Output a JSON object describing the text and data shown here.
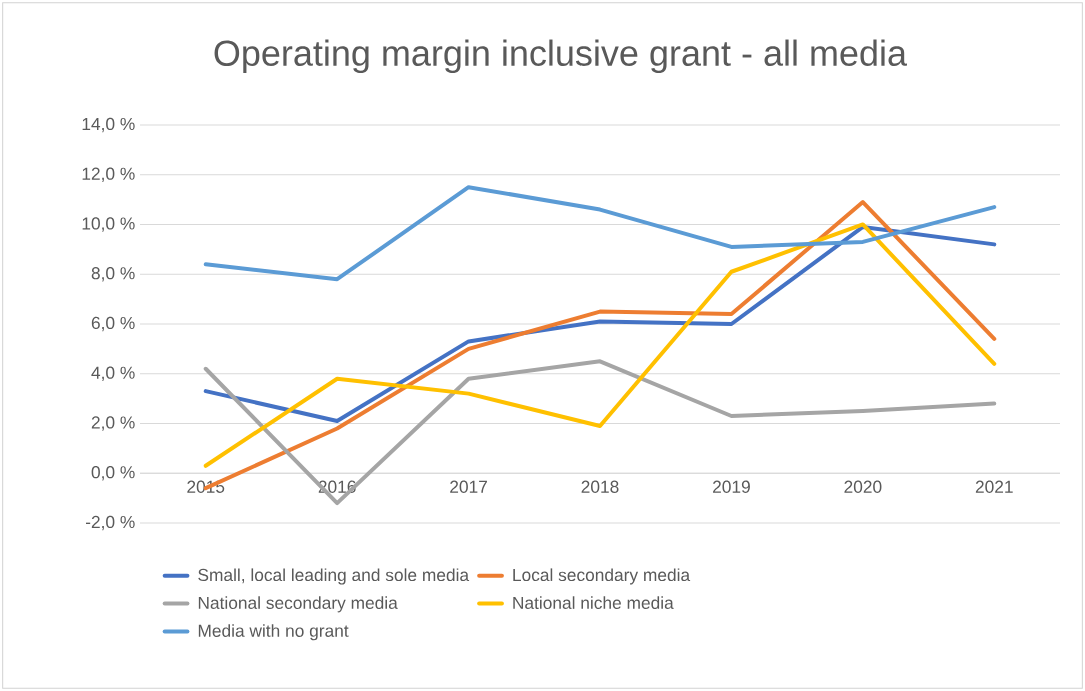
{
  "chart_data": {
    "type": "line",
    "title": "Operating margin inclusive grant - all media",
    "categories": [
      "2015",
      "2016",
      "2017",
      "2018",
      "2019",
      "2020",
      "2021"
    ],
    "series": [
      {
        "name": "Small, local leading and sole media",
        "color": "#4472c4",
        "values": [
          3.3,
          2.1,
          5.3,
          6.1,
          6.0,
          9.9,
          9.2
        ]
      },
      {
        "name": "Local secondary media",
        "color": "#ed7d31",
        "values": [
          -0.6,
          1.8,
          5.0,
          6.5,
          6.4,
          10.9,
          5.4
        ]
      },
      {
        "name": "National secondary media",
        "color": "#a5a5a5",
        "values": [
          4.2,
          -1.2,
          3.8,
          4.5,
          2.3,
          2.5,
          2.8
        ]
      },
      {
        "name": "National niche media",
        "color": "#ffc000",
        "values": [
          0.3,
          3.8,
          3.2,
          1.9,
          8.1,
          10.0,
          4.4
        ]
      },
      {
        "name": "Media with no grant",
        "color": "#5b9bd5",
        "values": [
          8.4,
          7.8,
          11.5,
          10.6,
          9.1,
          9.3,
          10.7
        ]
      }
    ],
    "ylim": [
      -2,
      14
    ],
    "yticks": [
      {
        "value": -2,
        "label": "-2,0 %"
      },
      {
        "value": 0,
        "label": "0,0 %"
      },
      {
        "value": 2,
        "label": "2,0 %"
      },
      {
        "value": 4,
        "label": "4,0 %"
      },
      {
        "value": 6,
        "label": "6,0 %"
      },
      {
        "value": 8,
        "label": "8,0 %"
      },
      {
        "value": 10,
        "label": "10,0 %"
      },
      {
        "value": 12,
        "label": "12,0 %"
      },
      {
        "value": 14,
        "label": "14,0 %"
      }
    ],
    "grid": "y",
    "legend": "bottom",
    "marker": "none",
    "line_style": "solid"
  }
}
